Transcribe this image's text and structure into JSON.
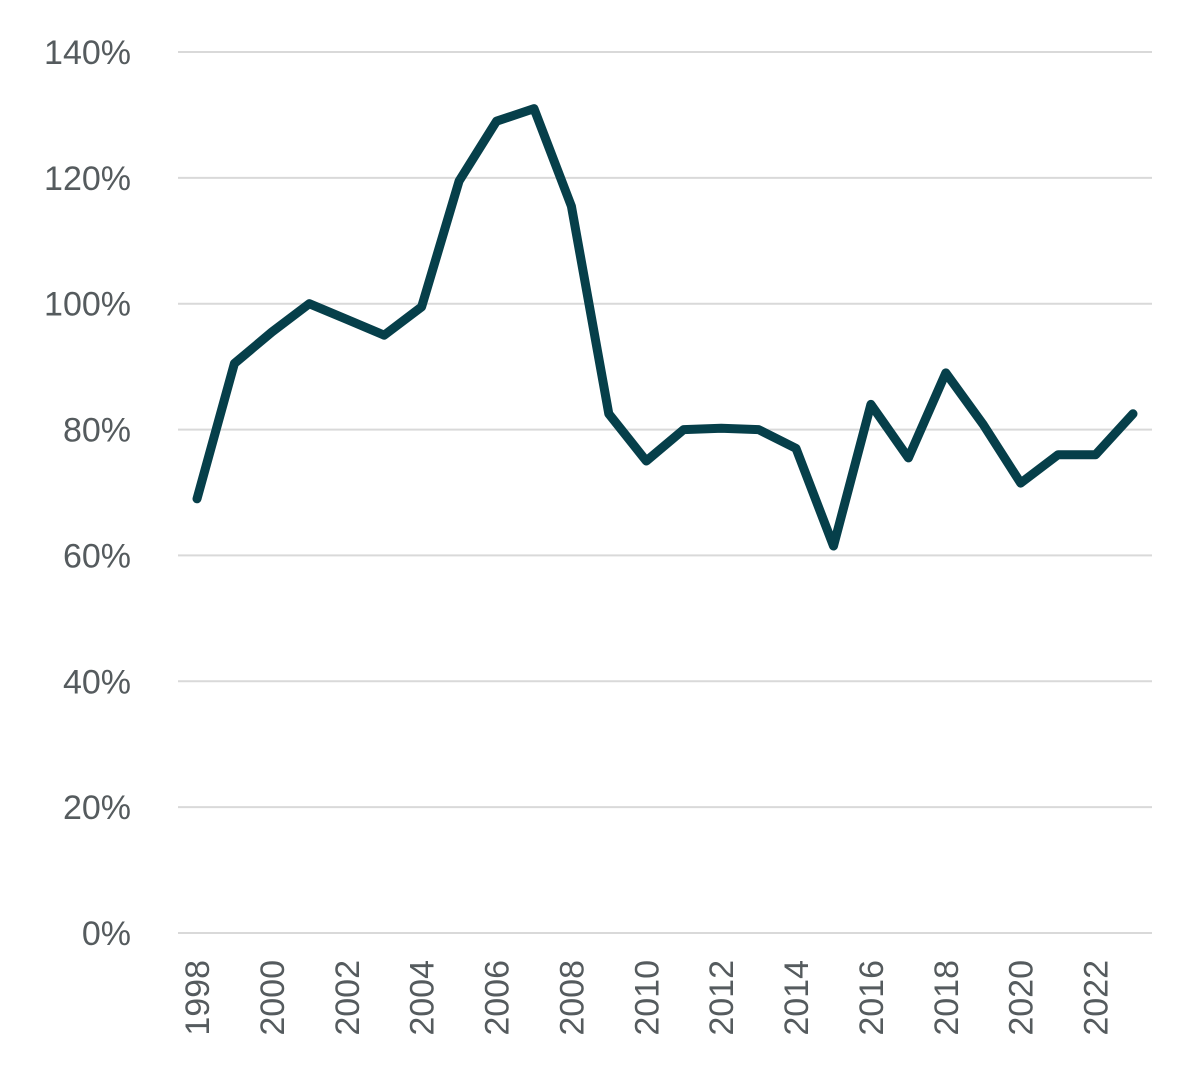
{
  "chart_data": {
    "type": "line",
    "title": "",
    "xlabel": "",
    "ylabel": "",
    "x": [
      1998,
      1999,
      2000,
      2001,
      2002,
      2003,
      2004,
      2005,
      2006,
      2007,
      2008,
      2009,
      2010,
      2011,
      2012,
      2013,
      2014,
      2015,
      2016,
      2017,
      2018,
      2019,
      2020,
      2021,
      2022,
      2023
    ],
    "series": [
      {
        "values": [
          69,
          90.5,
          95.5,
          100,
          97.5,
          95,
          99.5,
          119.5,
          129,
          131,
          115.5,
          82.5,
          75,
          80,
          80.2,
          80,
          77,
          61.5,
          84,
          75.5,
          89,
          80.8,
          71.5,
          76,
          76,
          82.5
        ],
        "color": "#063f4a"
      }
    ],
    "ylim": [
      0,
      140
    ],
    "ytick_values": [
      0,
      20,
      40,
      60,
      80,
      100,
      120,
      140
    ],
    "ytick_labels": [
      "0%",
      "20%",
      "40%",
      "60%",
      "80%",
      "100%",
      "120%",
      "140%"
    ],
    "xtick_labels": [
      "1998",
      "2000",
      "2002",
      "2004",
      "2006",
      "2008",
      "2010",
      "2012",
      "2014",
      "2016",
      "2018",
      "2020",
      "2022"
    ],
    "grid": true,
    "legend": "none"
  }
}
